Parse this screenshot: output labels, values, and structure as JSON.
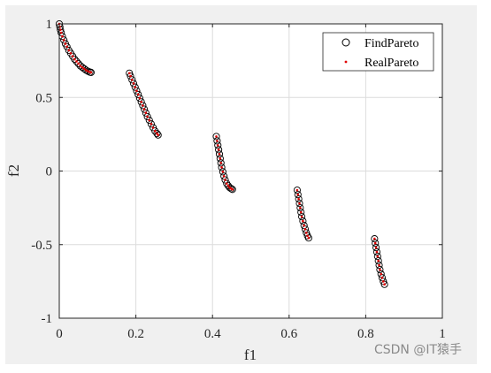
{
  "watermark": "CSDN @IT猿手",
  "chart_data": {
    "type": "scatter",
    "title": "",
    "xlabel": "f1",
    "ylabel": "f2",
    "xlim": [
      0,
      1
    ],
    "ylim": [
      -1,
      1
    ],
    "xticks": [
      "0",
      "0.2",
      "0.4",
      "0.6",
      "0.8",
      "1"
    ],
    "yticks": [
      "-1",
      "-0.5",
      "0",
      "0.5",
      "1"
    ],
    "grid": true,
    "legend_position": "top-right",
    "series": [
      {
        "name": "FindPareto",
        "marker": "circle-open",
        "color": "#000000",
        "segments": [
          {
            "x": [
              0.0,
              0.0015,
              0.003,
              0.005,
              0.008,
              0.012,
              0.016,
              0.02,
              0.025,
              0.03,
              0.035,
              0.04,
              0.045,
              0.05,
              0.055,
              0.06,
              0.065,
              0.07,
              0.075,
              0.08,
              0.083
            ],
            "y": [
              1.0,
              0.98,
              0.96,
              0.94,
              0.915,
              0.89,
              0.865,
              0.845,
              0.82,
              0.8,
              0.78,
              0.76,
              0.745,
              0.73,
              0.715,
              0.705,
              0.695,
              0.685,
              0.678,
              0.672,
              0.67
            ]
          },
          {
            "x": [
              0.183,
              0.186,
              0.19,
              0.194,
              0.198,
              0.202,
              0.206,
              0.21,
              0.214,
              0.218,
              0.222,
              0.226,
              0.23,
              0.235,
              0.24,
              0.245,
              0.25,
              0.255,
              0.258
            ],
            "y": [
              0.665,
              0.645,
              0.62,
              0.595,
              0.57,
              0.545,
              0.52,
              0.495,
              0.47,
              0.445,
              0.42,
              0.395,
              0.37,
              0.345,
              0.32,
              0.295,
              0.272,
              0.255,
              0.245
            ]
          },
          {
            "x": [
              0.41,
              0.412,
              0.414,
              0.416,
              0.418,
              0.42,
              0.422,
              0.424,
              0.427,
              0.43,
              0.433,
              0.437,
              0.441,
              0.445,
              0.449,
              0.452
            ],
            "y": [
              0.235,
              0.205,
              0.175,
              0.145,
              0.115,
              0.085,
              0.055,
              0.025,
              -0.005,
              -0.035,
              -0.06,
              -0.085,
              -0.1,
              -0.113,
              -0.12,
              -0.125
            ]
          },
          {
            "x": [
              0.621,
              0.623,
              0.625,
              0.627,
              0.629,
              0.631,
              0.633,
              0.636,
              0.639,
              0.642,
              0.645,
              0.648,
              0.651
            ],
            "y": [
              -0.13,
              -0.16,
              -0.19,
              -0.22,
              -0.25,
              -0.28,
              -0.31,
              -0.34,
              -0.37,
              -0.395,
              -0.42,
              -0.44,
              -0.455
            ]
          },
          {
            "x": [
              0.823,
              0.825,
              0.827,
              0.829,
              0.831,
              0.833,
              0.835,
              0.837,
              0.84,
              0.843,
              0.846,
              0.849
            ],
            "y": [
              -0.46,
              -0.49,
              -0.52,
              -0.55,
              -0.58,
              -0.61,
              -0.64,
              -0.67,
              -0.7,
              -0.725,
              -0.75,
              -0.77
            ]
          }
        ]
      },
      {
        "name": "RealPareto",
        "marker": "dot",
        "color": "#e00000",
        "segments": [
          {
            "x": [
              0.0,
              0.0015,
              0.003,
              0.005,
              0.008,
              0.012,
              0.016,
              0.02,
              0.025,
              0.03,
              0.035,
              0.04,
              0.045,
              0.05,
              0.055,
              0.06,
              0.065,
              0.07,
              0.075,
              0.08,
              0.083
            ],
            "y": [
              1.0,
              0.98,
              0.96,
              0.94,
              0.915,
              0.89,
              0.865,
              0.845,
              0.82,
              0.8,
              0.78,
              0.76,
              0.745,
              0.73,
              0.715,
              0.705,
              0.695,
              0.685,
              0.678,
              0.672,
              0.67
            ]
          },
          {
            "x": [
              0.183,
              0.186,
              0.19,
              0.194,
              0.198,
              0.202,
              0.206,
              0.21,
              0.214,
              0.218,
              0.222,
              0.226,
              0.23,
              0.235,
              0.24,
              0.245,
              0.25,
              0.255,
              0.258
            ],
            "y": [
              0.665,
              0.645,
              0.62,
              0.595,
              0.57,
              0.545,
              0.52,
              0.495,
              0.47,
              0.445,
              0.42,
              0.395,
              0.37,
              0.345,
              0.32,
              0.295,
              0.272,
              0.255,
              0.245
            ]
          },
          {
            "x": [
              0.41,
              0.412,
              0.414,
              0.416,
              0.418,
              0.42,
              0.422,
              0.424,
              0.427,
              0.43,
              0.433,
              0.437,
              0.441,
              0.445,
              0.449,
              0.452
            ],
            "y": [
              0.235,
              0.205,
              0.175,
              0.145,
              0.115,
              0.085,
              0.055,
              0.025,
              -0.005,
              -0.035,
              -0.06,
              -0.085,
              -0.1,
              -0.113,
              -0.12,
              -0.125
            ]
          },
          {
            "x": [
              0.621,
              0.623,
              0.625,
              0.627,
              0.629,
              0.631,
              0.633,
              0.636,
              0.639,
              0.642,
              0.645,
              0.648,
              0.651
            ],
            "y": [
              -0.13,
              -0.16,
              -0.19,
              -0.22,
              -0.25,
              -0.28,
              -0.31,
              -0.34,
              -0.37,
              -0.395,
              -0.42,
              -0.44,
              -0.455
            ]
          },
          {
            "x": [
              0.823,
              0.825,
              0.827,
              0.829,
              0.831,
              0.833,
              0.835,
              0.837,
              0.84,
              0.843,
              0.846,
              0.849
            ],
            "y": [
              -0.46,
              -0.49,
              -0.52,
              -0.55,
              -0.58,
              -0.61,
              -0.64,
              -0.67,
              -0.7,
              -0.725,
              -0.75,
              -0.77
            ]
          }
        ]
      }
    ]
  }
}
